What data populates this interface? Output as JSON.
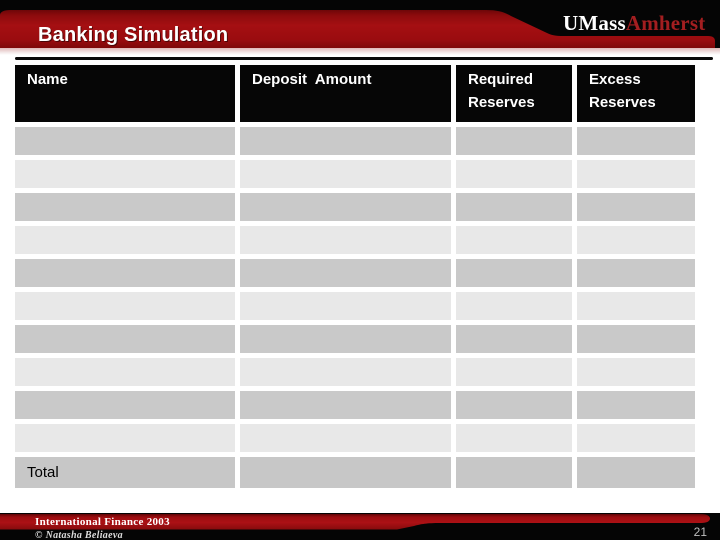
{
  "slide": {
    "title": "Banking Simulation",
    "logo": {
      "primary": "UMass",
      "secondary": "Amherst"
    },
    "page_number": "21"
  },
  "table": {
    "columns": [
      "Name",
      "Deposit  Amount",
      "Required Reserves",
      "Excess Reserves"
    ],
    "rows": [
      [
        "",
        "",
        "",
        ""
      ],
      [
        "",
        "",
        "",
        ""
      ],
      [
        "",
        "",
        "",
        ""
      ],
      [
        "",
        "",
        "",
        ""
      ],
      [
        "",
        "",
        "",
        ""
      ],
      [
        "",
        "",
        "",
        ""
      ],
      [
        "",
        "",
        "",
        ""
      ],
      [
        "",
        "",
        "",
        ""
      ],
      [
        "",
        "",
        "",
        ""
      ],
      [
        "",
        "",
        "",
        ""
      ]
    ],
    "total_label": "Total",
    "total_cells": [
      "",
      "",
      ""
    ]
  },
  "footer": {
    "course": "International Finance 2003",
    "copyright": "© Natasha Beliaeva"
  },
  "colors": {
    "banner_red": "#9e0d10",
    "logo_red": "#a31e20",
    "row_dark": "#c9c9c9",
    "row_light": "#e8e8e8",
    "table_header_bg": "#060606",
    "total_row_bg": "#c7c7c7",
    "page_number_gray": "#bdbdbd"
  }
}
